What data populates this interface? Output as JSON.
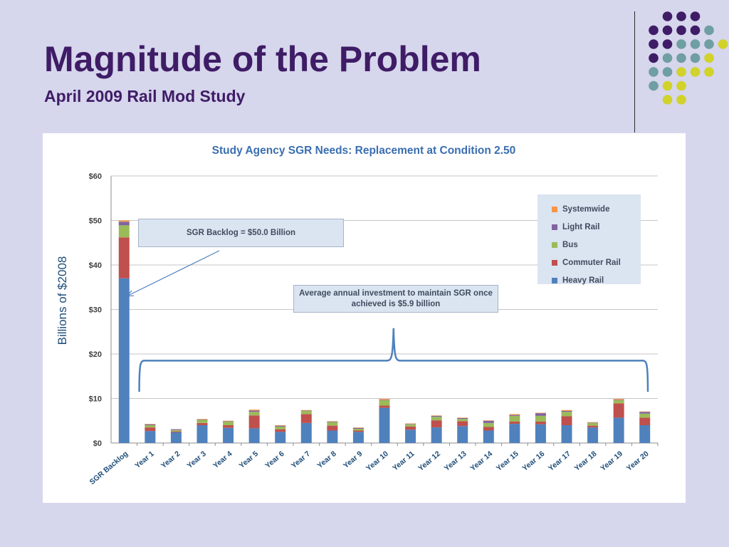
{
  "slide": {
    "title": "Magnitude of the Problem",
    "subtitle": "April 2009 Rail Mod Study"
  },
  "theme": {
    "background": "#d6d6ec",
    "title_color": "#3f1c66",
    "dot_colors": {
      "purple": "#3f1c66",
      "teal": "#6f9ea3",
      "yellow": "#d1d22a"
    }
  },
  "chart_data": {
    "type": "bar",
    "stacked": true,
    "title": "Study Agency SGR Needs: Replacement at Condition 2.50",
    "ylabel": "Billions of $2008",
    "xlabel": "",
    "ylim": [
      0,
      60
    ],
    "yticks": [
      0,
      10,
      20,
      30,
      40,
      50,
      60
    ],
    "ytick_labels": [
      "$0",
      "$10",
      "$20",
      "$30",
      "$40",
      "$50",
      "$60"
    ],
    "grid": "horizontal",
    "legend_position": "top-right",
    "categories": [
      "SGR Backlog",
      "Year 1",
      "Year 2",
      "Year 3",
      "Year 4",
      "Year 5",
      "Year 6",
      "Year 7",
      "Year 8",
      "Year 9",
      "Year 10",
      "Year 11",
      "Year 12",
      "Year 13",
      "Year 14",
      "Year 15",
      "Year 16",
      "Year 17",
      "Year 18",
      "Year 19",
      "Year 20"
    ],
    "series": [
      {
        "name": "Heavy Rail",
        "color": "#4f81bd",
        "values": [
          37.0,
          2.7,
          2.4,
          4.0,
          3.4,
          3.3,
          2.5,
          4.5,
          2.8,
          2.5,
          7.9,
          3.0,
          3.5,
          3.8,
          2.8,
          4.3,
          4.2,
          4.0,
          3.5,
          5.7,
          4.0
        ]
      },
      {
        "name": "Commuter Rail",
        "color": "#c0504d",
        "values": [
          9.2,
          0.8,
          0.2,
          0.5,
          0.6,
          2.9,
          0.6,
          2.0,
          1.1,
          0.3,
          0.5,
          0.7,
          1.6,
          1.1,
          0.8,
          0.5,
          0.6,
          2.0,
          0.4,
          3.2,
          1.7
        ]
      },
      {
        "name": "Bus",
        "color": "#9bbb59",
        "values": [
          2.7,
          0.5,
          0.3,
          0.7,
          0.8,
          0.8,
          0.6,
          0.7,
          0.8,
          0.4,
          1.2,
          0.5,
          0.8,
          0.5,
          0.9,
          1.3,
          1.3,
          1.0,
          0.6,
          0.7,
          0.9
        ]
      },
      {
        "name": "Light Rail",
        "color": "#8064a2",
        "values": [
          0.8,
          0.2,
          0.2,
          0.1,
          0.1,
          0.3,
          0.2,
          0.1,
          0.1,
          0.2,
          0.1,
          0.1,
          0.2,
          0.2,
          0.5,
          0.2,
          0.6,
          0.2,
          0.1,
          0.1,
          0.4
        ]
      },
      {
        "name": "Systemwide",
        "color": "#f79646",
        "values": [
          0.3,
          0.1,
          0.0,
          0.1,
          0.1,
          0.2,
          0.1,
          0.1,
          0.1,
          0.1,
          0.2,
          0.1,
          0.1,
          0.1,
          0.1,
          0.2,
          0.1,
          0.2,
          0.1,
          0.2,
          0.1
        ]
      }
    ],
    "annotations": [
      {
        "text": "SGR Backlog = $50.0 Billion",
        "points_to": "SGR Backlog"
      },
      {
        "text": "Average annual investment to maintain SGR once achieved is $5.9 billion",
        "spans": [
          "Year 1",
          "Year 20"
        ]
      }
    ]
  }
}
